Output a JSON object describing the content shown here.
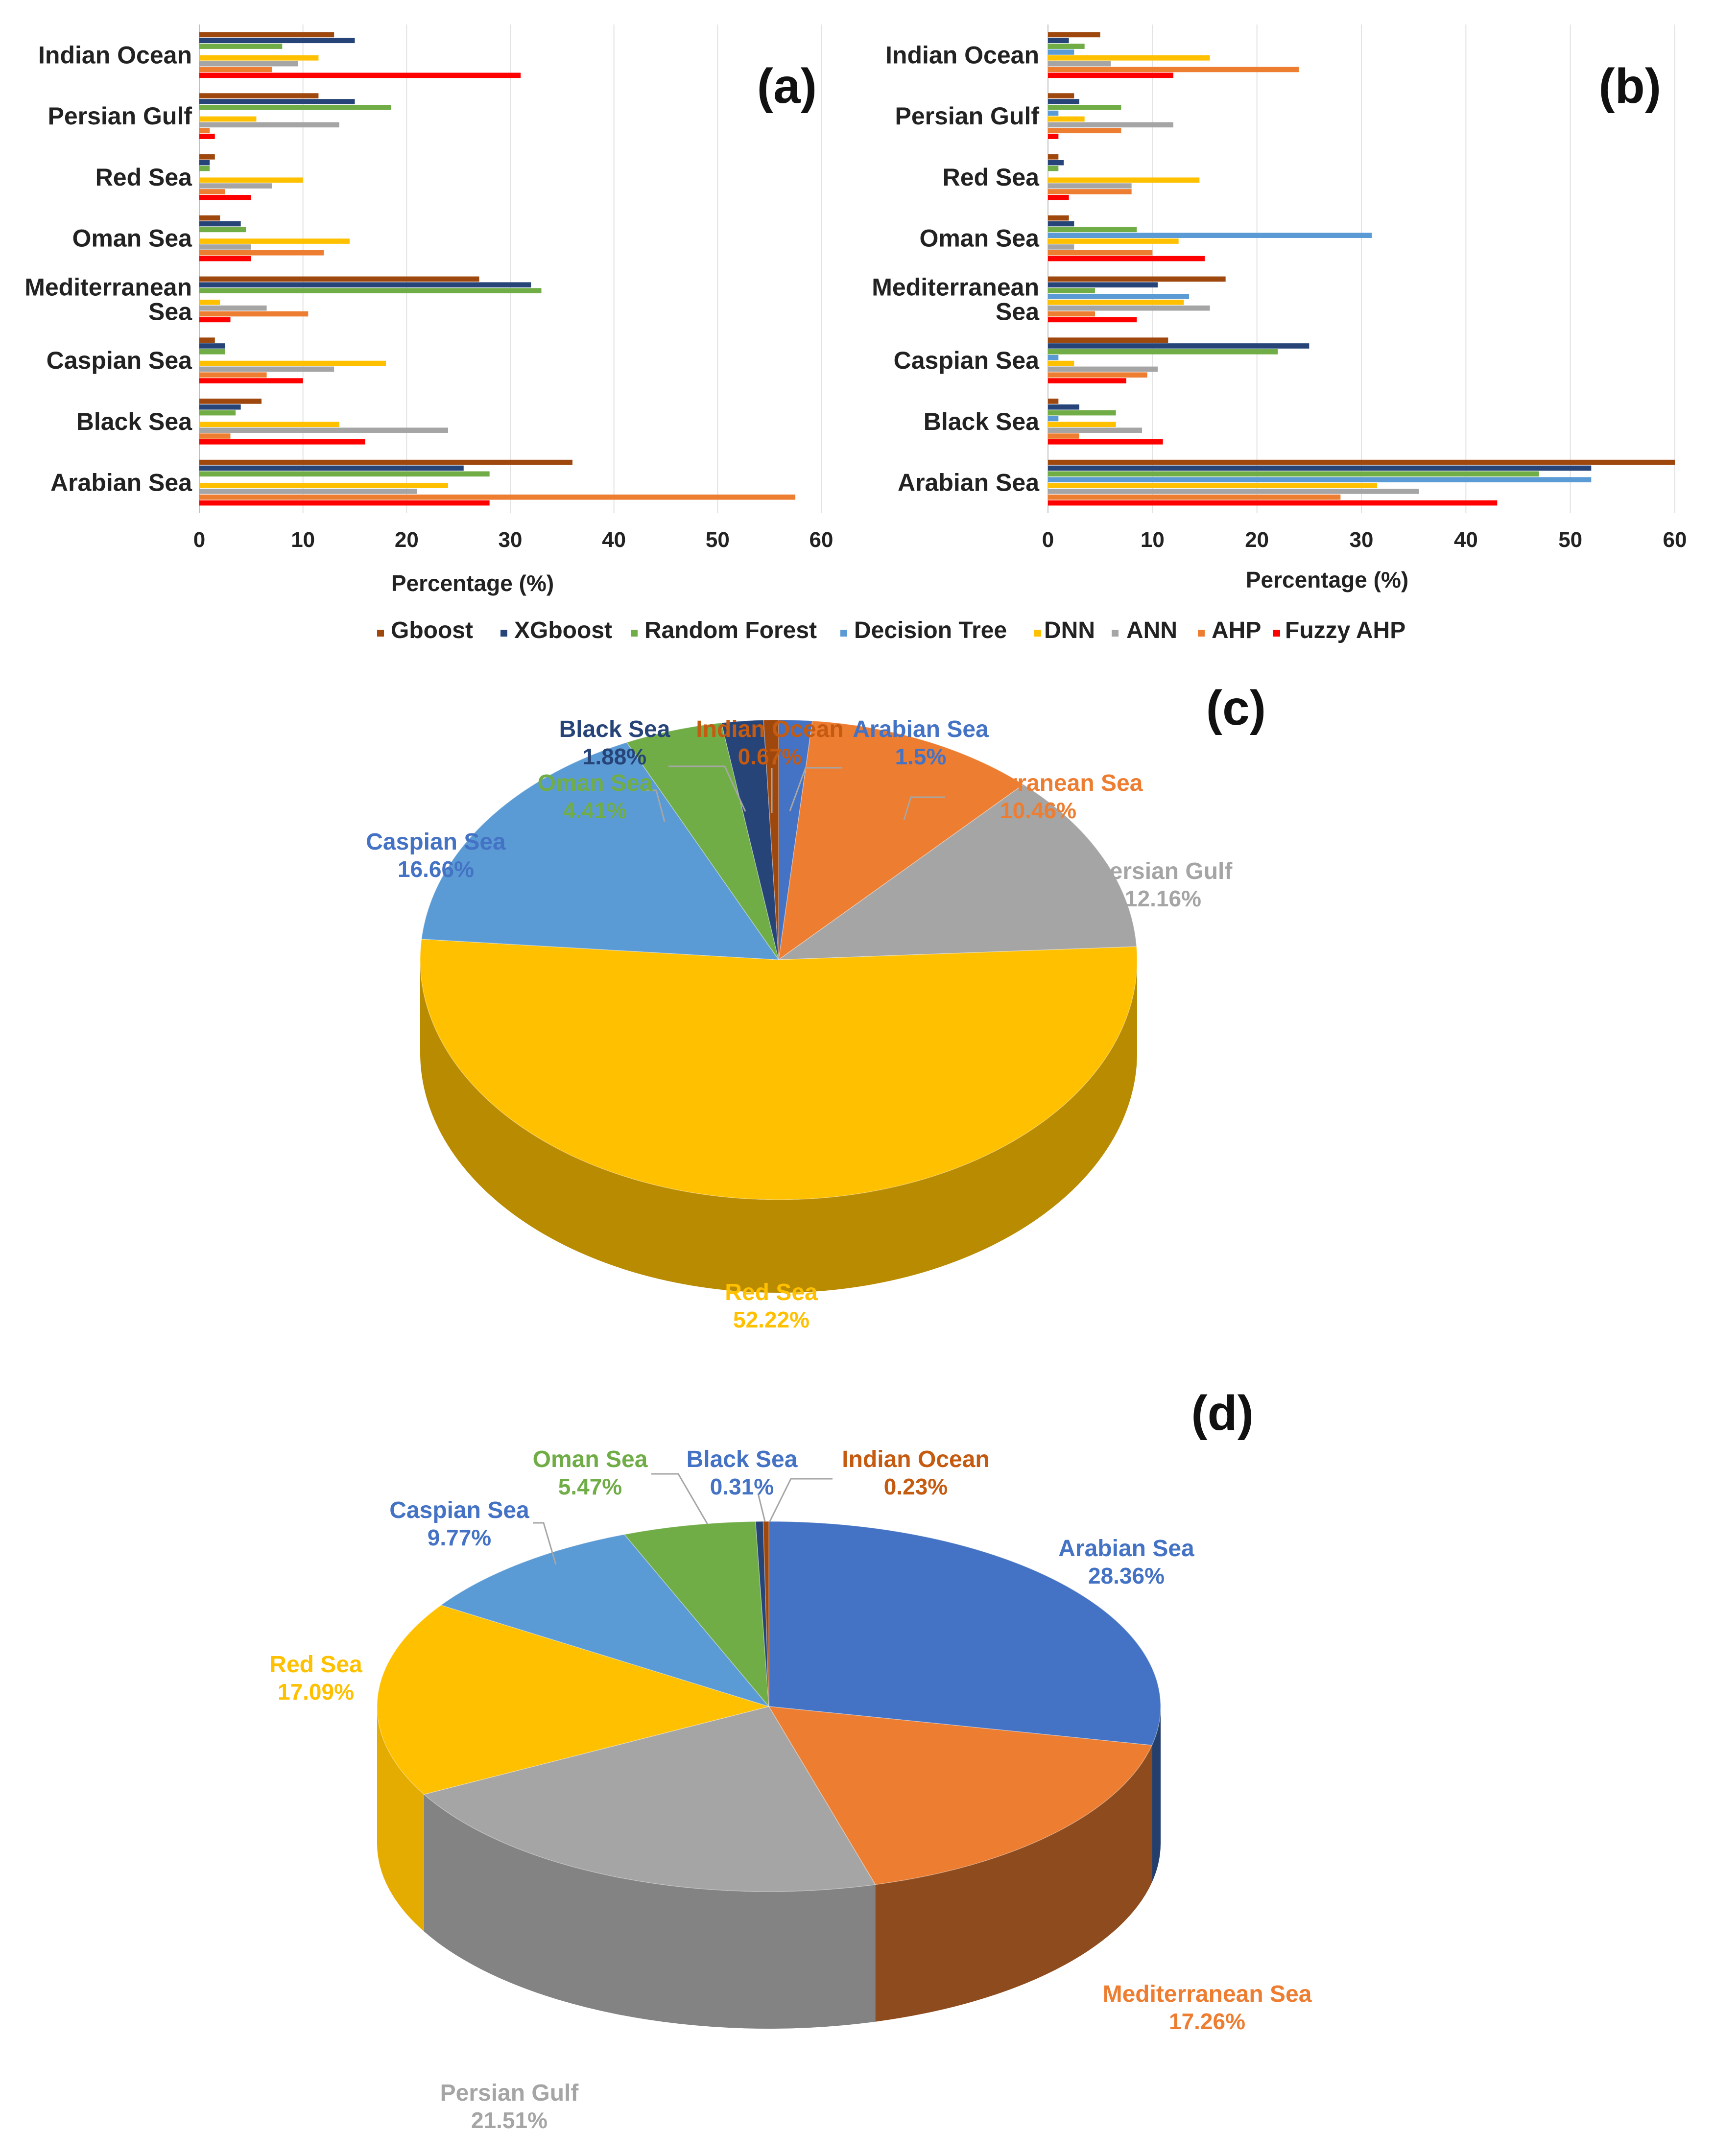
{
  "colors": {
    "Gboost": "#9e480e",
    "XGboost": "#264478",
    "Random Forest": "#70ad47",
    "Decision Tree": "#5b9bd5",
    "DNN": "#ffc000",
    "ANN": "#a5a5a5",
    "AHP": "#ed7d31",
    "Fuzzy AHP": "#ff0000"
  },
  "legend": {
    "items": [
      "Gboost",
      "XGboost",
      "Random Forest",
      "Decision Tree",
      "DNN",
      "ANN",
      "AHP",
      "Fuzzy AHP"
    ]
  },
  "chart_data": [
    {
      "id": "a",
      "panel_label": "(a)",
      "type": "bar",
      "orientation": "horizontal",
      "categories": [
        "Indian Ocean",
        "Persian Gulf",
        "Red Sea",
        "Oman Sea",
        "Mediterranean Sea",
        "Caspian Sea",
        "Black Sea",
        "Arabian Sea"
      ],
      "category_lines": [
        [
          "Indian Ocean"
        ],
        [
          "Persian Gulf"
        ],
        [
          "Red Sea"
        ],
        [
          "Oman Sea"
        ],
        [
          "Mediterranean",
          "Sea"
        ],
        [
          "Caspian Sea"
        ],
        [
          "Black Sea"
        ],
        [
          "Arabian Sea"
        ]
      ],
      "series": [
        {
          "name": "Gboost",
          "values": [
            13,
            11.5,
            1.5,
            2,
            27,
            1.5,
            6,
            36
          ]
        },
        {
          "name": "XGboost",
          "values": [
            15,
            15,
            1,
            4,
            32,
            2.5,
            4,
            25.5
          ]
        },
        {
          "name": "Random Forest",
          "values": [
            8,
            18.5,
            1,
            4.5,
            33,
            2.5,
            3.5,
            28
          ]
        },
        {
          "name": "Decision Tree",
          "values": [
            0,
            0,
            0,
            0,
            0,
            0,
            0,
            0
          ]
        },
        {
          "name": "DNN",
          "values": [
            11.5,
            5.5,
            10,
            14.5,
            2,
            18,
            13.5,
            24
          ]
        },
        {
          "name": "ANN",
          "values": [
            9.5,
            13.5,
            7,
            5,
            6.5,
            13,
            24,
            21
          ]
        },
        {
          "name": "AHP",
          "values": [
            7,
            1,
            2.5,
            12,
            10.5,
            6.5,
            3,
            57.5
          ]
        },
        {
          "name": "Fuzzy AHP",
          "values": [
            31,
            1.5,
            5,
            5,
            3,
            10,
            16,
            28
          ]
        }
      ],
      "xlabel": "Percentage (%)",
      "xlim": [
        0,
        60
      ],
      "xticks": [
        0,
        10,
        20,
        30,
        40,
        50,
        60
      ]
    },
    {
      "id": "b",
      "panel_label": "(b)",
      "type": "bar",
      "orientation": "horizontal",
      "categories": [
        "Indian Ocean",
        "Persian Gulf",
        "Red Sea",
        "Oman Sea",
        "Mediterranean Sea",
        "Caspian Sea",
        "Black Sea",
        "Arabian Sea"
      ],
      "category_lines": [
        [
          "Indian Ocean"
        ],
        [
          "Persian Gulf"
        ],
        [
          "Red Sea"
        ],
        [
          "Oman Sea"
        ],
        [
          "Mediterranean",
          "Sea"
        ],
        [
          "Caspian Sea"
        ],
        [
          "Black Sea"
        ],
        [
          "Arabian Sea"
        ]
      ],
      "series": [
        {
          "name": "Gboost",
          "values": [
            5,
            2.5,
            1,
            2,
            17,
            11.5,
            1,
            60
          ]
        },
        {
          "name": "XGboost",
          "values": [
            2,
            3,
            1.5,
            2.5,
            10.5,
            25,
            3,
            52
          ]
        },
        {
          "name": "Random Forest",
          "values": [
            3.5,
            7,
            1,
            8.5,
            4.5,
            22,
            6.5,
            47
          ]
        },
        {
          "name": "Decision Tree",
          "values": [
            2.5,
            1,
            0,
            31,
            13.5,
            1,
            1,
            52
          ]
        },
        {
          "name": "DNN",
          "values": [
            15.5,
            3.5,
            14.5,
            12.5,
            13,
            2.5,
            6.5,
            31.5
          ]
        },
        {
          "name": "ANN",
          "values": [
            6,
            12,
            8,
            2.5,
            15.5,
            10.5,
            9,
            35.5
          ]
        },
        {
          "name": "AHP",
          "values": [
            24,
            7,
            8,
            10,
            4.5,
            9.5,
            3,
            28
          ]
        },
        {
          "name": "Fuzzy AHP",
          "values": [
            12,
            1,
            2,
            15,
            8.5,
            7.5,
            11,
            43
          ]
        }
      ],
      "xlabel": "Percentage (%)",
      "xlim": [
        0,
        60
      ],
      "xticks": [
        0,
        10,
        20,
        30,
        40,
        50,
        60
      ]
    },
    {
      "id": "c",
      "panel_label": "(c)",
      "type": "pie",
      "style": "3d",
      "slices": [
        {
          "label": "Arabian Sea",
          "value": 1.5,
          "display": "1.5%",
          "color": "#4472c4",
          "label_color": "#4472c4"
        },
        {
          "label": "Mediterranean Sea",
          "value": 10.46,
          "display": "10.46%",
          "color": "#ed7d31",
          "label_color": "#ed7d31"
        },
        {
          "label": "Persian Gulf",
          "value": 12.16,
          "display": "12.16%",
          "color": "#a5a5a5",
          "label_color": "#a5a5a5"
        },
        {
          "label": "Red Sea",
          "value": 52.22,
          "display": "52.22%",
          "color": "#ffc000",
          "label_color": "#ffc000"
        },
        {
          "label": "Caspian Sea",
          "value": 16.66,
          "display": "16.66%",
          "color": "#5b9bd5",
          "label_color": "#4472c4"
        },
        {
          "label": "Oman Sea",
          "value": 4.41,
          "display": "4.41%",
          "color": "#70ad47",
          "label_color": "#70ad47"
        },
        {
          "label": "Black Sea",
          "value": 1.88,
          "display": "1.88%",
          "color": "#264478",
          "label_color": "#264478"
        },
        {
          "label": "Indian Ocean",
          "value": 0.67,
          "display": "0.67%",
          "color": "#9e480e",
          "label_color": "#c55a11"
        }
      ]
    },
    {
      "id": "d",
      "panel_label": "(d)",
      "type": "pie",
      "style": "3d",
      "slices": [
        {
          "label": "Arabian Sea",
          "value": 28.36,
          "display": "28.36%",
          "color": "#4472c4",
          "label_color": "#4472c4"
        },
        {
          "label": "Mediterranean Sea",
          "value": 17.26,
          "display": "17.26%",
          "color": "#ed7d31",
          "label_color": "#ed7d31"
        },
        {
          "label": "Persian Gulf",
          "value": 21.51,
          "display": "21.51%",
          "color": "#a5a5a5",
          "label_color": "#a5a5a5"
        },
        {
          "label": "Red Sea",
          "value": 17.09,
          "display": "17.09%",
          "color": "#ffc000",
          "label_color": "#ffc000"
        },
        {
          "label": "Caspian Sea",
          "value": 9.77,
          "display": "9.77%",
          "color": "#5b9bd5",
          "label_color": "#4472c4"
        },
        {
          "label": "Oman Sea",
          "value": 5.47,
          "display": "5.47%",
          "color": "#70ad47",
          "label_color": "#70ad47"
        },
        {
          "label": "Black Sea",
          "value": 0.31,
          "display": "0.31%",
          "color": "#264478",
          "label_color": "#4472c4"
        },
        {
          "label": "Indian Ocean",
          "value": 0.23,
          "display": "0.23%",
          "color": "#9e480e",
          "label_color": "#c55a11"
        }
      ]
    }
  ]
}
